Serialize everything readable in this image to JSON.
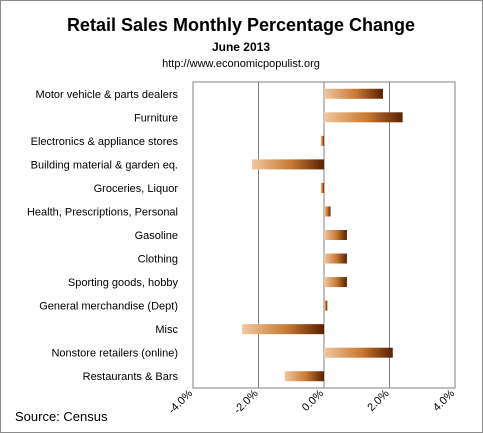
{
  "chart_data": {
    "type": "bar",
    "orientation": "horizontal",
    "title": "Retail Sales Monthly  Percentage Change",
    "subtitle": "June 2013",
    "url_label": "http://www.economicpopulist.org",
    "source": "Source:  Census",
    "categories": [
      "Motor vehicle & parts dealers",
      "Furniture",
      "Electronics & appliance stores",
      "Building material & garden eq.",
      "Groceries, Liquor",
      "Health, Prescriptions, Personal",
      "Gasoline",
      "Clothing",
      "Sporting goods, hobby",
      "General merchandise (Dept)",
      "Misc",
      "Nonstore retailers (online)",
      "Restaurants & Bars"
    ],
    "values": [
      1.8,
      2.4,
      -0.1,
      -2.2,
      -0.1,
      0.2,
      0.7,
      0.7,
      0.7,
      0.1,
      -2.5,
      2.1,
      -1.2
    ],
    "xlim": [
      -4.0,
      4.0
    ],
    "ticks": [
      -4.0,
      -2.0,
      0.0,
      2.0,
      4.0
    ],
    "tick_labels": [
      "-4.0%",
      "-2.0%",
      "0.0%",
      "2.0%",
      "4.0%"
    ],
    "grid": true,
    "colors": {
      "bar_light": "#f0c8a0",
      "bar_mid": "#c87832",
      "bar_dark": "#5a2000",
      "gridline": "#808080",
      "frame": "#8c8c8c"
    }
  }
}
